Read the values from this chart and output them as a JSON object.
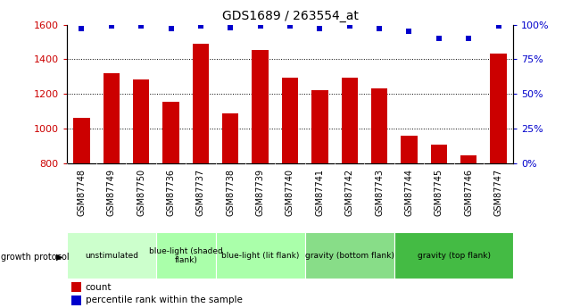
{
  "title": "GDS1689 / 263554_at",
  "categories": [
    "GSM87748",
    "GSM87749",
    "GSM87750",
    "GSM87736",
    "GSM87737",
    "GSM87738",
    "GSM87739",
    "GSM87740",
    "GSM87741",
    "GSM87742",
    "GSM87743",
    "GSM87744",
    "GSM87745",
    "GSM87746",
    "GSM87747"
  ],
  "bar_values": [
    1063,
    1320,
    1285,
    1155,
    1490,
    1090,
    1455,
    1295,
    1220,
    1295,
    1230,
    960,
    905,
    845,
    1435
  ],
  "dot_values": [
    97,
    99,
    99,
    97,
    99,
    98,
    99,
    99,
    97,
    99,
    97,
    95,
    90,
    90,
    99
  ],
  "bar_color": "#cc0000",
  "dot_color": "#0000cc",
  "ylim_left": [
    800,
    1600
  ],
  "ylim_right": [
    0,
    100
  ],
  "yticks_left": [
    800,
    1000,
    1200,
    1400,
    1600
  ],
  "yticks_right": [
    0,
    25,
    50,
    75,
    100
  ],
  "ytick_labels_right": [
    "0%",
    "25%",
    "50%",
    "75%",
    "100%"
  ],
  "grid_values": [
    1000,
    1200,
    1400
  ],
  "groups": [
    {
      "label": "unstimulated",
      "start": 0,
      "end": 3,
      "color": "#ccffcc"
    },
    {
      "label": "blue-light (shaded\nflank)",
      "start": 3,
      "end": 5,
      "color": "#aaffaa"
    },
    {
      "label": "blue-light (lit flank)",
      "start": 5,
      "end": 8,
      "color": "#aaffaa"
    },
    {
      "label": "gravity (bottom flank)",
      "start": 8,
      "end": 11,
      "color": "#88dd88"
    },
    {
      "label": "gravity (top flank)",
      "start": 11,
      "end": 15,
      "color": "#44bb44"
    }
  ],
  "growth_protocol_label": "growth protocol",
  "legend_items": [
    {
      "label": "count",
      "color": "#cc0000"
    },
    {
      "label": "percentile rank within the sample",
      "color": "#0000cc"
    }
  ],
  "bar_width": 0.55,
  "left_tick_color": "#cc0000",
  "right_tick_color": "#0000cc",
  "plot_bg": "#ffffff",
  "fig_bg": "#ffffff",
  "xticklabel_bg": "#dddddd"
}
